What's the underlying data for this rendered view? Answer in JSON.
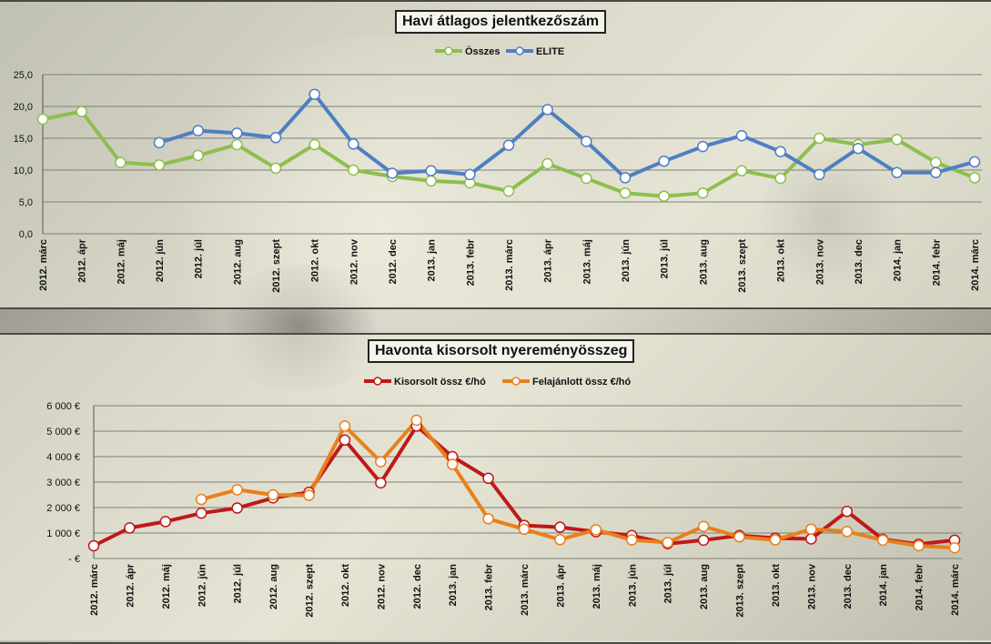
{
  "chart_data": [
    {
      "type": "line",
      "title": "Havi átlagos jelentkezőszám",
      "categories": [
        "2012. márc",
        "2012. ápr",
        "2012. máj",
        "2012. jún",
        "2012. júl",
        "2012. aug",
        "2012. szept",
        "2012. okt",
        "2012. nov",
        "2012. dec",
        "2013. jan",
        "2013. febr",
        "2013. márc",
        "2013. ápr",
        "2013. máj",
        "2013. jún",
        "2013. júl",
        "2013. aug",
        "2013. szept",
        "2013. okt",
        "2013. nov",
        "2013. dec",
        "2014. jan",
        "2014. febr",
        "2014. márc"
      ],
      "series": [
        {
          "name": "Összes",
          "color": "#8cbf4e",
          "values": [
            18.0,
            19.2,
            11.2,
            10.8,
            12.3,
            14.0,
            10.3,
            14.0,
            10.0,
            9.0,
            8.3,
            8.0,
            6.7,
            11.0,
            8.7,
            6.4,
            5.9,
            6.4,
            9.9,
            8.7,
            15.0,
            14.0,
            14.8,
            11.2,
            8.8
          ]
        },
        {
          "name": "ELITE",
          "color": "#4f7fc2",
          "values": [
            null,
            null,
            null,
            14.3,
            16.2,
            15.8,
            15.1,
            21.9,
            14.1,
            9.5,
            9.9,
            9.3,
            13.9,
            19.5,
            14.5,
            8.8,
            11.4,
            13.7,
            15.4,
            12.9,
            9.3,
            13.4,
            9.6,
            9.6,
            11.3
          ]
        }
      ],
      "ylim": [
        0,
        25
      ],
      "yticks": [
        "0,0",
        "5,0",
        "10,0",
        "15,0",
        "20,0",
        "25,0"
      ],
      "grid": true,
      "legend": "top-center"
    },
    {
      "type": "line",
      "title": "Havonta kisorsolt nyereményösszeg",
      "categories": [
        "2012. márc",
        "2012. ápr",
        "2012. máj",
        "2012. jún",
        "2012. júl",
        "2012. aug",
        "2012. szept",
        "2012. okt",
        "2012. nov",
        "2012. dec",
        "2013. jan",
        "2013. febr",
        "2013. márc",
        "2013. ápr",
        "2013. máj",
        "2013. jún",
        "2013. júl",
        "2013. aug",
        "2013. szept",
        "2013. okt",
        "2013. nov",
        "2013. dec",
        "2014. jan",
        "2014. febr",
        "2014. márc"
      ],
      "series": [
        {
          "name": "Kisorsolt össz €/hó",
          "color": "#c01818",
          "values": [
            500,
            1200,
            1450,
            1780,
            1980,
            2380,
            2600,
            4650,
            2970,
            5200,
            4000,
            3150,
            1300,
            1230,
            1050,
            900,
            580,
            720,
            900,
            800,
            770,
            1850,
            750,
            560,
            720
          ]
        },
        {
          "name": "Felajánlott össz €/hó",
          "color": "#e8801a",
          "values": [
            null,
            null,
            null,
            2320,
            2700,
            2500,
            2480,
            5200,
            3800,
            5430,
            3700,
            1560,
            1150,
            740,
            1130,
            730,
            630,
            1260,
            850,
            730,
            1150,
            1060,
            720,
            500,
            420
          ]
        }
      ],
      "ylim": [
        0,
        6000
      ],
      "yticks": [
        "-   €",
        "1 000 €",
        "2 000 €",
        "3 000 €",
        "4 000 €",
        "5 000 €",
        "6 000 €"
      ],
      "grid": true,
      "legend": "top-center"
    }
  ]
}
